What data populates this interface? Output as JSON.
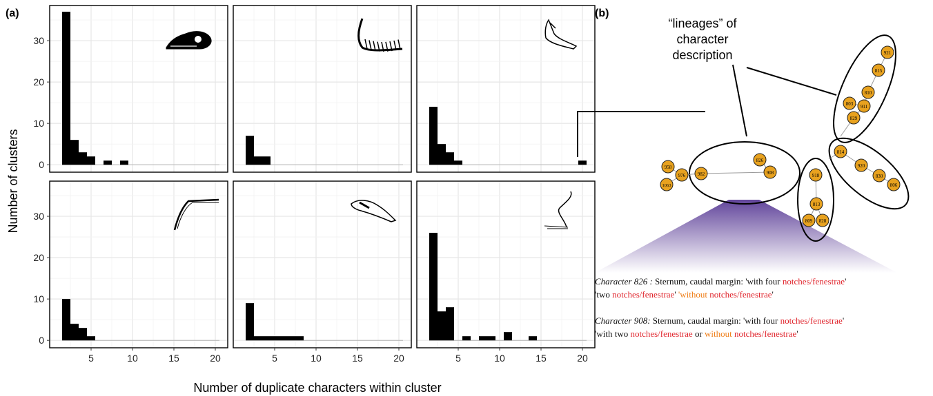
{
  "panel_labels": {
    "a": "(a)",
    "b": "(b)"
  },
  "colors": {
    "bar": "#000000",
    "node": "#E8A21F",
    "node_stroke": "#222222",
    "cone": "#6a4c9c",
    "highlight_red": "#e0242c",
    "highlight_orange": "#ef7f1a"
  },
  "chart_data": {
    "type": "bar",
    "xlabel": "Number of duplicate characters within cluster",
    "ylabel": "Number of clusters",
    "xlim": [
      0,
      21.5
    ],
    "ylim": [
      -1.8,
      38.5
    ],
    "x_ticks": [
      5,
      10,
      15,
      20
    ],
    "y_ticks": [
      0,
      10,
      20,
      30
    ],
    "grid": true,
    "panels": [
      {
        "icon": "bird-skull-icon",
        "bars": [
          {
            "x": 2,
            "y": 37
          },
          {
            "x": 3,
            "y": 6
          },
          {
            "x": 4,
            "y": 3
          },
          {
            "x": 5,
            "y": 2
          },
          {
            "x": 6,
            "y": 0
          },
          {
            "x": 7,
            "y": 1
          },
          {
            "x": 8,
            "y": 0
          },
          {
            "x": 9,
            "y": 1
          }
        ]
      },
      {
        "icon": "vertebral-column-icon",
        "bars": [
          {
            "x": 2,
            "y": 7
          },
          {
            "x": 3,
            "y": 2
          },
          {
            "x": 4,
            "y": 2
          }
        ]
      },
      {
        "icon": "forelimb-icon",
        "bars": [
          {
            "x": 2,
            "y": 14
          },
          {
            "x": 3,
            "y": 5
          },
          {
            "x": 4,
            "y": 3
          },
          {
            "x": 5,
            "y": 1
          },
          {
            "x": 20,
            "y": 1
          }
        ]
      },
      {
        "icon": "hindlimb-bone-icon",
        "bars": [
          {
            "x": 2,
            "y": 10
          },
          {
            "x": 3,
            "y": 4
          },
          {
            "x": 4,
            "y": 3
          },
          {
            "x": 5,
            "y": 1
          }
        ]
      },
      {
        "icon": "pelvis-icon",
        "bars": [
          {
            "x": 2,
            "y": 9
          },
          {
            "x": 3,
            "y": 1
          },
          {
            "x": 4,
            "y": 1
          },
          {
            "x": 5,
            "y": 1
          },
          {
            "x": 6,
            "y": 1
          },
          {
            "x": 7,
            "y": 1
          },
          {
            "x": 8,
            "y": 1
          }
        ]
      },
      {
        "icon": "leg-foot-icon",
        "bars": [
          {
            "x": 2,
            "y": 26
          },
          {
            "x": 3,
            "y": 7
          },
          {
            "x": 4,
            "y": 8
          },
          {
            "x": 6,
            "y": 1
          },
          {
            "x": 8,
            "y": 1
          },
          {
            "x": 9,
            "y": 1
          },
          {
            "x": 11,
            "y": 2
          },
          {
            "x": 14,
            "y": 1
          }
        ]
      }
    ]
  },
  "network": {
    "annotation": [
      "“lineages” of",
      "character",
      "description"
    ],
    "clusters": [
      {
        "nodes": [
          "958",
          "976",
          "982",
          "826",
          "908",
          "1063"
        ]
      },
      {
        "nodes": [
          "918",
          "813",
          "809",
          "828"
        ]
      },
      {
        "nodes": [
          "814",
          "920",
          "830",
          "806"
        ]
      },
      {
        "nodes": [
          "921",
          "815",
          "810",
          "803",
          "911",
          "829"
        ]
      }
    ]
  },
  "caption": {
    "c826": {
      "label": "Character 826 :",
      "line1_plain": " Sternum, caudal margin: 'with four ",
      "line1_red": "notches/fenestrae",
      "line1_end": "'",
      "line2_start": "'two ",
      "line2_red": "notches/fenestrae",
      "line2_mid": "' ",
      "line2_orange": "'without",
      "line2_red2": " notches/fenestrae",
      "line2_end": "'"
    },
    "c908": {
      "label": "Character 908:",
      "line1_plain": " Sternum, caudal margin: 'with four ",
      "line1_red": "notches/fenestrae",
      "line1_end": "'",
      "line2_start": "'with two ",
      "line2_red": "notches/fenestrae",
      "line2_mid": " or ",
      "line2_orange": "without",
      "line2_red2": " notches/fenestrae",
      "line2_end": "'"
    }
  }
}
